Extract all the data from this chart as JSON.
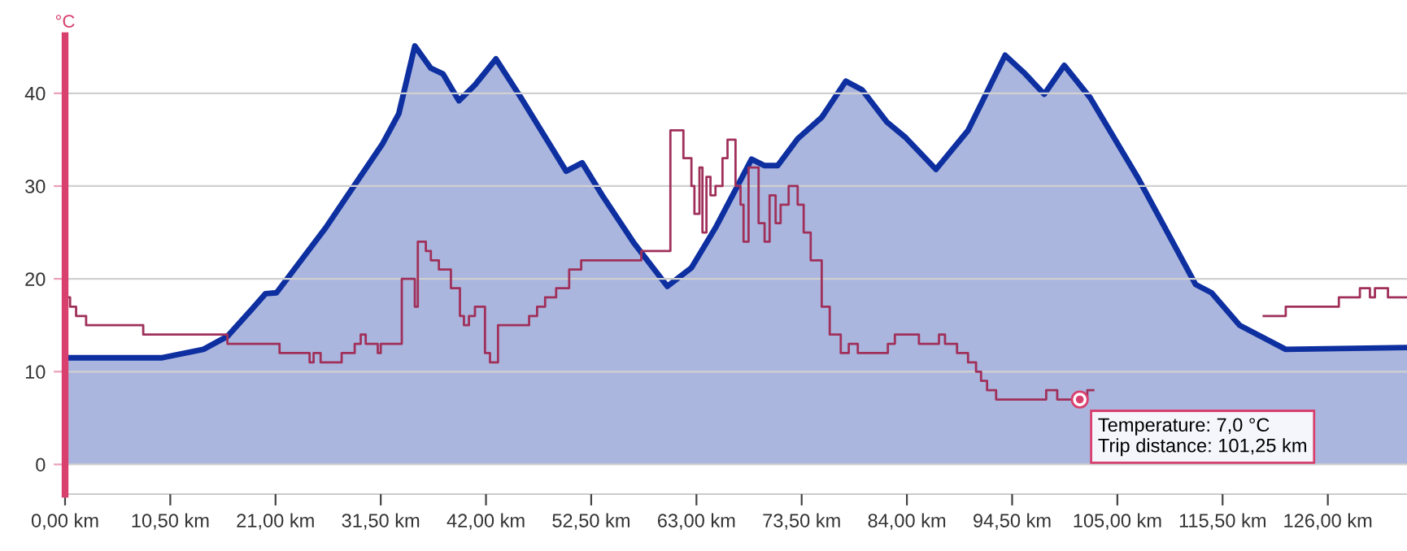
{
  "chart_data": {
    "type": "area",
    "ylabel": "°C",
    "xlim": [
      0,
      133.9
    ],
    "ylim": [
      -3.2,
      46.2
    ],
    "yticks": [
      0,
      10,
      20,
      30,
      40
    ],
    "xticks": [
      {
        "value": 0,
        "label": "0,00 km"
      },
      {
        "value": 10.5,
        "label": "10,50 km"
      },
      {
        "value": 21,
        "label": "21,00 km"
      },
      {
        "value": 31.5,
        "label": "31,50 km"
      },
      {
        "value": 42,
        "label": "42,00 km"
      },
      {
        "value": 52.5,
        "label": "52,50 km"
      },
      {
        "value": 63,
        "label": "63,00 km"
      },
      {
        "value": 73.5,
        "label": "73,50 km"
      },
      {
        "value": 84,
        "label": "84,00 km"
      },
      {
        "value": 94.5,
        "label": "94,50 km"
      },
      {
        "value": 105,
        "label": "105,00 km"
      },
      {
        "value": 115.5,
        "label": "115,50 km"
      },
      {
        "value": 126,
        "label": "126,00 km"
      }
    ],
    "grid": "y",
    "series": [
      {
        "color": "#0d2fa0",
        "x": [
          0,
          9.7,
          13.8,
          16.2,
          18.7,
          20.0,
          21.1,
          26.0,
          31.7,
          33.3,
          34.9,
          36.5,
          37.7,
          39.3,
          40.9,
          43.0,
          45.5,
          50.0,
          51.6,
          53.6,
          56.8,
          60.1,
          62.5,
          64.9,
          68.5,
          69.8,
          71.1,
          73.1,
          75.5,
          77.9,
          79.5,
          82.0,
          83.8,
          86.9,
          90.1,
          93.8,
          95.8,
          97.7,
          99.7,
          102.3,
          107.1,
          112.8,
          114.4,
          117.2,
          121.8,
          133.9
        ],
        "values": [
          11.5,
          11.5,
          12.4,
          13.8,
          16.8,
          18.4,
          18.5,
          25.5,
          34.6,
          37.8,
          45.1,
          42.7,
          42.1,
          39.2,
          40.9,
          43.7,
          39.5,
          31.6,
          32.5,
          29.0,
          23.8,
          19.2,
          21.2,
          25.5,
          32.9,
          32.2,
          32.2,
          35.1,
          37.4,
          41.3,
          40.4,
          36.9,
          35.3,
          31.8,
          36.0,
          44.1,
          42.1,
          39.9,
          43.0,
          39.5,
          30.8,
          19.4,
          18.5,
          15.0,
          12.4,
          12.6
        ]
      },
      {
        "type": "step",
        "color": "#a0305a",
        "x": [
          0,
          0.5,
          1.1,
          2.1,
          7.8,
          16.2,
          21.4,
          24.4,
          24.8,
          25.5,
          27.6,
          28.9,
          29.5,
          30.0,
          31.2,
          31.5,
          33.6,
          34.4,
          34.9,
          35.2,
          36.0,
          36.5,
          37.3,
          38.5,
          39.4,
          39.8,
          40.3,
          40.9,
          41.9,
          42.4,
          43.2,
          46.3,
          47.1,
          47.9,
          49.0,
          50.3,
          51.5,
          57.5,
          60.4,
          61.7,
          62.5,
          62.8,
          63.3,
          63.6,
          64.0,
          64.4,
          64.9,
          65.6,
          66.1,
          66.9,
          67.4,
          67.7,
          68.2,
          69.2,
          69.8,
          70.3,
          70.9,
          71.4,
          72.2,
          73.1,
          73.7,
          74.4,
          75.5,
          76.3,
          77.4,
          78.2,
          79.1,
          82.1,
          82.8,
          85.2,
          87.2,
          87.8,
          89.0,
          90.1,
          90.9,
          91.4,
          92.0,
          92.9,
          97.9,
          99.0,
          102.0,
          102.6,
          119.6,
          121.8,
          127.1,
          129.2,
          130.2,
          130.7,
          132.0,
          133.9
        ],
        "values": [
          18,
          17,
          16,
          15,
          14,
          13,
          12,
          11,
          12,
          11,
          12,
          13,
          14,
          13,
          12,
          13,
          20,
          20,
          17,
          24,
          23,
          22,
          21,
          19,
          16,
          15,
          16,
          17,
          12,
          11,
          15,
          16,
          17,
          18,
          19,
          21,
          22,
          23,
          36,
          33,
          30,
          27,
          32,
          25,
          31,
          29,
          30,
          33,
          35,
          30,
          28,
          24,
          32,
          26,
          24,
          29,
          26,
          28,
          30,
          28,
          25,
          22,
          17,
          14,
          12,
          13,
          12,
          13,
          14,
          13,
          14,
          13,
          12,
          11,
          10,
          9,
          8,
          7,
          8,
          7,
          8,
          null,
          16,
          17,
          18,
          19,
          18,
          19,
          18,
          18
        ]
      }
    ],
    "annotations": [
      {
        "text": "Temperature: 7,0 °C\nTrip distance: 101,25 km",
        "x": 101.25,
        "y": 7
      }
    ]
  }
}
